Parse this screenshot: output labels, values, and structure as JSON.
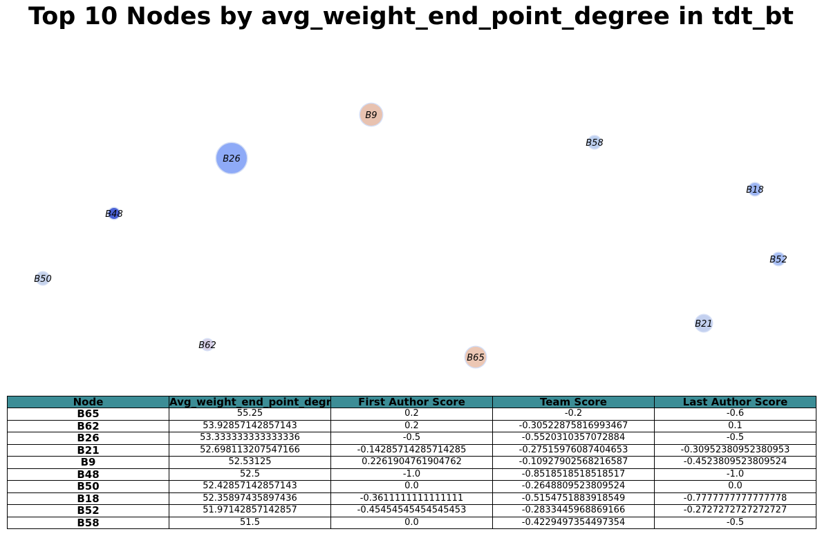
{
  "title": "Top 10 Nodes by avg_weight_end_point_degree in tdt_bt",
  "chart_data": {
    "type": "network",
    "nodes": [
      {
        "id": "B26",
        "size": 53.333333333333336,
        "color": "#8eaaf7"
      },
      {
        "id": "B9",
        "size": 52.53125,
        "color": "#e8c2b0"
      },
      {
        "id": "B58",
        "size": 51.5,
        "color": "#bdd0f0"
      },
      {
        "id": "B18",
        "size": 52.35897435897436,
        "color": "#9db5f2"
      },
      {
        "id": "B48",
        "size": 52.5,
        "color": "#4a62d6"
      },
      {
        "id": "B52",
        "size": 51.97142857142857,
        "color": "#a8bff5"
      },
      {
        "id": "B50",
        "size": 52.42857142857143,
        "color": "#c6d3ec"
      },
      {
        "id": "B21",
        "size": 52.698113207547166,
        "color": "#c3d0ef"
      },
      {
        "id": "B62",
        "size": 53.92857142857143,
        "color": "#d7cfe6"
      },
      {
        "id": "B65",
        "size": 55.25,
        "color": "#ecc7b4"
      }
    ]
  },
  "table": {
    "columns": [
      "Node",
      "Avg_weight_end_point_degr",
      "First Author Score",
      "Team Score",
      "Last Author Score"
    ],
    "rows": [
      [
        "B65",
        "55.25",
        "0.2",
        "-0.2",
        "-0.6"
      ],
      [
        "B62",
        "53.92857142857143",
        "0.2",
        "-0.30522875816993467",
        "0.1"
      ],
      [
        "B26",
        "53.333333333333336",
        "-0.5",
        "-0.5520310357072884",
        "-0.5"
      ],
      [
        "B21",
        "52.698113207547166",
        "-0.14285714285714285",
        "-0.27515976087404653",
        "-0.30952380952380953"
      ],
      [
        "B9",
        "52.53125",
        "0.2261904761904762",
        "-0.10927902568216587",
        "-0.4523809523809524"
      ],
      [
        "B48",
        "52.5",
        "-1.0",
        "-0.8518518518518517",
        "-1.0"
      ],
      [
        "B50",
        "52.42857142857143",
        "0.0",
        "-0.2648809523809524",
        "0.0"
      ],
      [
        "B18",
        "52.35897435897436",
        "-0.3611111111111111",
        "-0.5154751883918549",
        "-0.7777777777777778"
      ],
      [
        "B52",
        "51.97142857142857",
        "-0.45454545454545453",
        "-0.2833445968869166",
        "-0.2727272727272727"
      ],
      [
        "B58",
        "51.5",
        "0.0",
        "-0.4229497354497354",
        "-0.5"
      ]
    ]
  }
}
